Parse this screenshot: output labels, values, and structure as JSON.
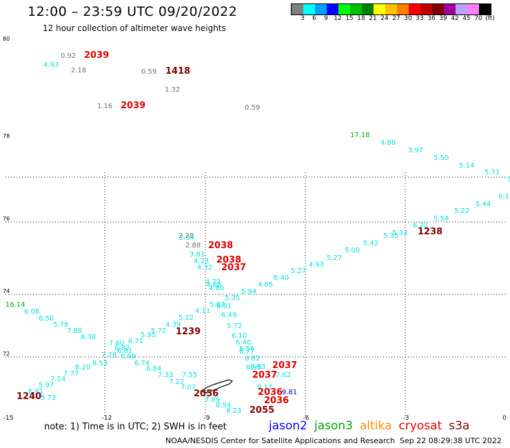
{
  "header": {
    "title": "12:00 – 23:59 UTC 09/20/2022",
    "subtitle": "12 hour collection of altimeter wave heights"
  },
  "colorbar": {
    "colors": [
      "#808080",
      "#00ffff",
      "#00a0ff",
      "#0000ff",
      "#00ff00",
      "#00c000",
      "#008000",
      "#ffff00",
      "#ffc000",
      "#ff8000",
      "#ff0000",
      "#c00000",
      "#800000",
      "#a000a0",
      "#c0a0ff",
      "#ff80ff",
      "#000000"
    ],
    "labels": [
      "3",
      "6",
      "9",
      "12",
      "15",
      "18",
      "21",
      "24",
      "27",
      "30",
      "33",
      "36",
      "39",
      "42",
      "45",
      "70",
      "(ft)"
    ]
  },
  "axes": {
    "x_ticks": [
      "-15",
      "-12",
      "-9",
      "-6",
      "-3",
      "0"
    ],
    "y_ticks": [
      "80",
      "78",
      "76",
      "74",
      "72"
    ]
  },
  "labels": [
    {
      "t": "0.92",
      "c": "#707070"
    },
    {
      "t": "2039",
      "c": "#e00000",
      "b": true
    },
    {
      "t": "4.93",
      "c": "#00e0e0"
    },
    {
      "t": "2.18",
      "c": "#707070"
    },
    {
      "t": "0.59",
      "c": "#707070"
    },
    {
      "t": "1418",
      "c": "#800000",
      "b": true
    },
    {
      "t": "1.32",
      "c": "#707070"
    },
    {
      "t": "1.16",
      "c": "#707070"
    },
    {
      "t": "2039",
      "c": "#e00000",
      "b": true
    },
    {
      "t": "0.59",
      "c": "#707070"
    },
    {
      "t": "17.18",
      "c": "#00b000"
    },
    {
      "t": "4.88",
      "c": "#00e0e0"
    },
    {
      "t": "3.97",
      "c": "#00e0e0"
    },
    {
      "t": "5.50",
      "c": "#00e0e0"
    },
    {
      "t": "5.14",
      "c": "#00e0e0"
    },
    {
      "t": "5.71",
      "c": "#00e0e0"
    },
    {
      "t": "5",
      "c": "#00e0e0"
    },
    {
      "t": "6.1",
      "c": "#00e0e0"
    },
    {
      "t": "5.44",
      "c": "#00e0e0"
    },
    {
      "t": "5.22",
      "c": "#00e0e0"
    },
    {
      "t": "5.54",
      "c": "#00e0e0"
    },
    {
      "t": "6.22",
      "c": "#00e0e0"
    },
    {
      "t": "5.33",
      "c": "#00e0e0"
    },
    {
      "t": "1238",
      "c": "#800000",
      "b": true
    },
    {
      "t": "5.35",
      "c": "#00e0e0"
    },
    {
      "t": "5.42",
      "c": "#00e0e0"
    },
    {
      "t": "5.00",
      "c": "#00e0e0"
    },
    {
      "t": "5.27",
      "c": "#00e0e0"
    },
    {
      "t": "4.93",
      "c": "#00e0e0"
    },
    {
      "t": "5.27",
      "c": "#00e0e0"
    },
    {
      "t": "6.40",
      "c": "#00e0e0"
    },
    {
      "t": "4.65",
      "c": "#00e0e0"
    },
    {
      "t": "5.94",
      "c": "#00e0e0"
    },
    {
      "t": "5.35",
      "c": "#00e0e0"
    },
    {
      "t": "2.28",
      "c": "#707070"
    },
    {
      "t": "2.34",
      "c": "#00e0e0"
    },
    {
      "t": "2.88",
      "c": "#707070"
    },
    {
      "t": "2038",
      "c": "#e00000",
      "b": true
    },
    {
      "t": "3.81",
      "c": "#00e0e0"
    },
    {
      "t": "4.23",
      "c": "#00e0e0"
    },
    {
      "t": "2038",
      "c": "#e00000",
      "b": true
    },
    {
      "t": "4.32",
      "c": "#00e0e0"
    },
    {
      "t": "2037",
      "c": "#e00000",
      "b": true
    },
    {
      "t": "4.72",
      "c": "#00e0e0"
    },
    {
      "t": "4.82",
      "c": "#00e0e0"
    },
    {
      "t": "4.80",
      "c": "#00e0e0"
    },
    {
      "t": "5.87",
      "c": "#00e0e0"
    },
    {
      "t": "6.61",
      "c": "#00e0e0"
    },
    {
      "t": "6.49",
      "c": "#00e0e0"
    },
    {
      "t": "4.11",
      "c": "#00e0e0"
    },
    {
      "t": "5.12",
      "c": "#00e0e0"
    },
    {
      "t": "4.39",
      "c": "#00e0e0"
    },
    {
      "t": "1239",
      "c": "#800000",
      "b": true
    },
    {
      "t": "5.72",
      "c": "#00e0e0"
    },
    {
      "t": "5.95",
      "c": "#00e0e0"
    },
    {
      "t": "6.71",
      "c": "#00e0e0"
    },
    {
      "t": "6.82",
      "c": "#00e0e0"
    },
    {
      "t": "6.81",
      "c": "#00e0e0"
    },
    {
      "t": "6.99",
      "c": "#00e0e0"
    },
    {
      "t": "6.74",
      "c": "#00e0e0"
    },
    {
      "t": "6.84",
      "c": "#00e0e0"
    },
    {
      "t": "7.33",
      "c": "#00e0e0"
    },
    {
      "t": "7.22",
      "c": "#00e0e0"
    },
    {
      "t": "7.07",
      "c": "#00e0e0"
    },
    {
      "t": "7.55",
      "c": "#00e0e0"
    },
    {
      "t": "2056",
      "c": "#800000",
      "b": true
    },
    {
      "t": "7.89",
      "c": "#00e0e0"
    },
    {
      "t": "8.54",
      "c": "#00e0e0"
    },
    {
      "t": "8.23",
      "c": "#00e0e0"
    },
    {
      "t": "2055",
      "c": "#800000",
      "b": true
    },
    {
      "t": "16.14",
      "c": "#00b000"
    },
    {
      "t": "6.08",
      "c": "#00e0e0"
    },
    {
      "t": "6.50",
      "c": "#00e0e0"
    },
    {
      "t": "5.78",
      "c": "#00e0e0"
    },
    {
      "t": "7.88",
      "c": "#00e0e0"
    },
    {
      "t": "8.38",
      "c": "#00e0e0"
    },
    {
      "t": "7.60",
      "c": "#00e0e0"
    },
    {
      "t": "7.78",
      "c": "#00e0e0"
    },
    {
      "t": "8.53",
      "c": "#00e0e0"
    },
    {
      "t": "8.20",
      "c": "#00e0e0"
    },
    {
      "t": "7.77",
      "c": "#00e0e0"
    },
    {
      "t": "7.14",
      "c": "#00e0e0"
    },
    {
      "t": "5.97",
      "c": "#00e0e0"
    },
    {
      "t": "6.61",
      "c": "#00e0e0"
    },
    {
      "t": "1240",
      "c": "#800000",
      "b": true
    },
    {
      "t": "5.73",
      "c": "#00e0e0"
    },
    {
      "t": "5.72",
      "c": "#00e0e0"
    },
    {
      "t": "6.10",
      "c": "#00e0e0"
    },
    {
      "t": "6.40",
      "c": "#00e0e0"
    },
    {
      "t": "6.56",
      "c": "#00e0e0"
    },
    {
      "t": "6.77",
      "c": "#00e0e0"
    },
    {
      "t": "6.82",
      "c": "#00e0e0"
    },
    {
      "t": "6.96",
      "c": "#00e0e0"
    },
    {
      "t": "6.93",
      "c": "#00e0e0"
    },
    {
      "t": "2037",
      "c": "#e00000",
      "b": true
    },
    {
      "t": "2037",
      "c": "#e00000",
      "b": true
    },
    {
      "t": "7.62",
      "c": "#00e0e0"
    },
    {
      "t": "8.17",
      "c": "#00e0e0"
    },
    {
      "t": "2036",
      "c": "#e00000",
      "b": true
    },
    {
      "t": "9.81",
      "c": "#0000e0"
    },
    {
      "t": "2036",
      "c": "#e00000",
      "b": true
    }
  ],
  "note": "note:  1) Time is in UTC; 2) SWH is in feet",
  "legend": [
    {
      "name": "jason2",
      "c": "#0000ff"
    },
    {
      "name": "jason3",
      "c": "#00a000"
    },
    {
      "name": "altika",
      "c": "#ff9000"
    },
    {
      "name": "cryosat",
      "c": "#e00000"
    },
    {
      "name": "s3a",
      "c": "#800000"
    }
  ],
  "footer": "NOAA/NESDIS Center for Satellite Applications and Research",
  "footer_time": "Sep 22 08:29:38 UTC 2022"
}
